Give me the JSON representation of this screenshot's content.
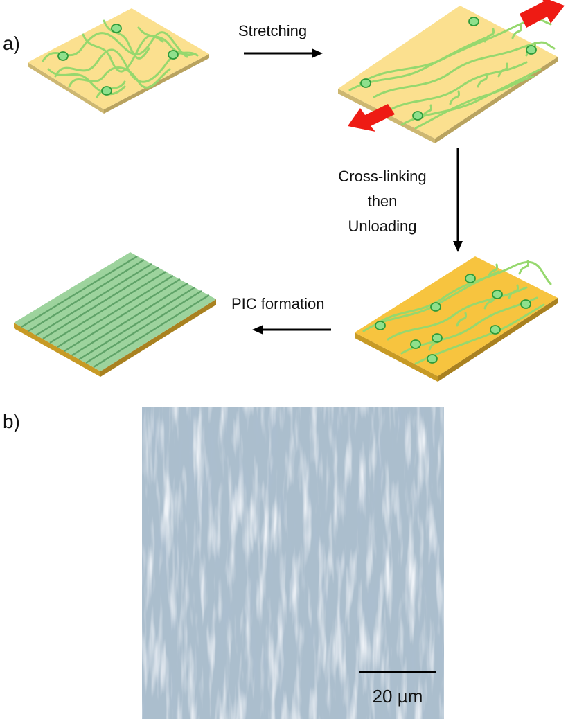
{
  "panels": {
    "a": {
      "label": "a)"
    },
    "b": {
      "label": "b)"
    }
  },
  "steps": {
    "stretching": "Stretching",
    "crosslink": [
      "Cross-linking",
      "then",
      "Unloading"
    ],
    "pic": "PIC formation"
  },
  "scale_bar": {
    "label": "20 µm"
  },
  "colors": {
    "film_pale": "#fbe08f",
    "film_pale_side": "#cdb771",
    "film_deep": "#f7c43f",
    "film_deep_side": "#c79a25",
    "chain": "#96d86e",
    "node_fill": "#8fe08c",
    "node_stroke": "#2d9b3a",
    "stripe_dark": "#5fa368",
    "stripe_light": "#9dd39d",
    "arrow_red": "#ee1b14",
    "arrow_black": "#000000",
    "micrograph_bg": "#a9bccb"
  }
}
